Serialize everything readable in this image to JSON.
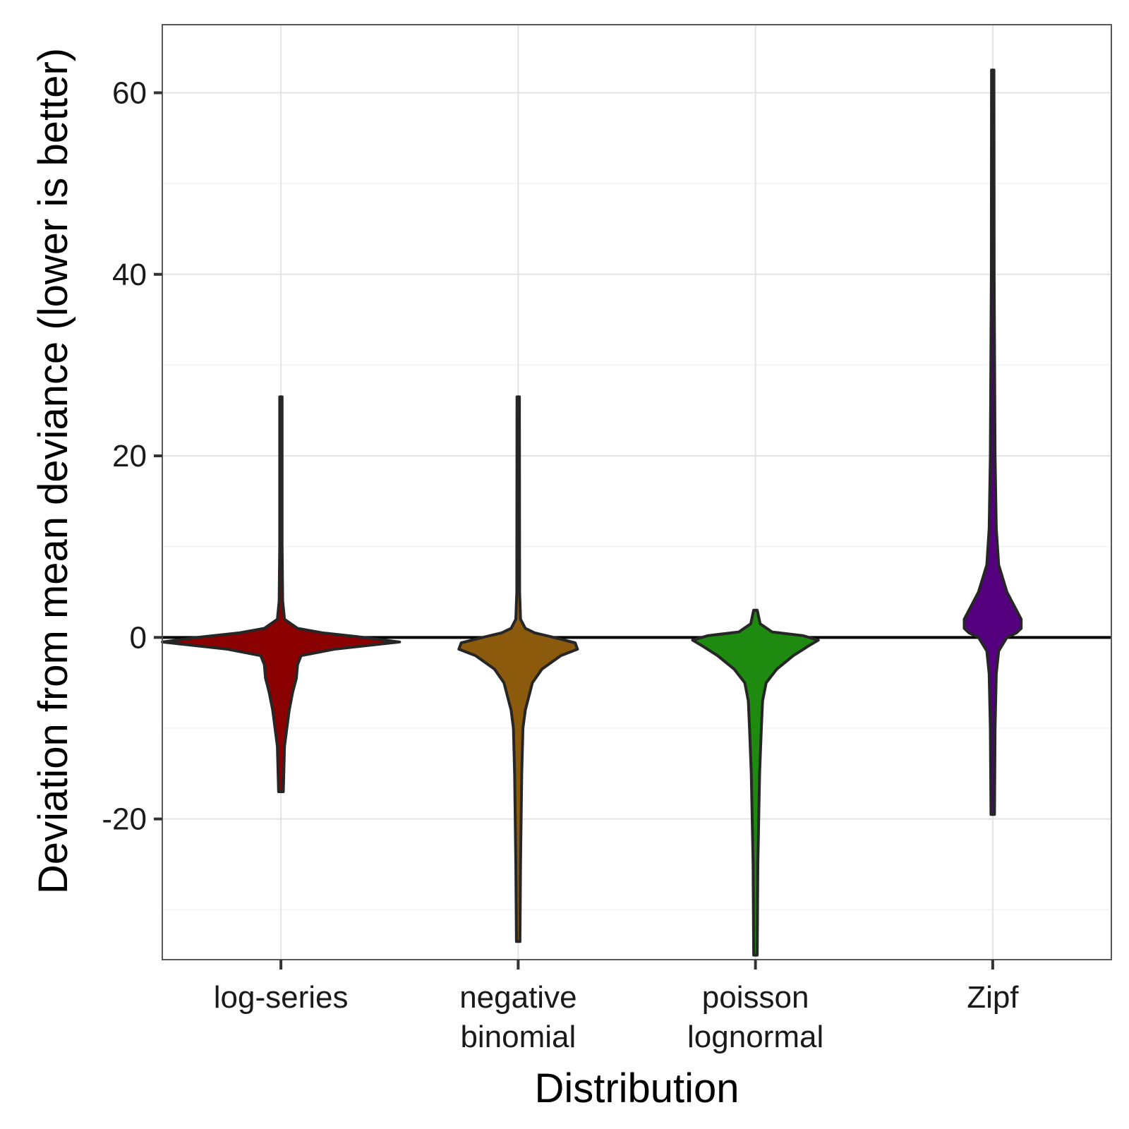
{
  "chart_data": {
    "type": "violin",
    "xlabel": "Distribution",
    "ylabel": "Deviation from mean deviance (lower is better)",
    "ylim": [
      -35.5,
      67.5
    ],
    "y_ticks": [
      -20,
      0,
      20,
      40,
      60
    ],
    "y_tick_labels": [
      "-20",
      "0",
      "20",
      "40",
      "60"
    ],
    "reference_line_y": 0,
    "grid": true,
    "categories": [
      [
        "log-series"
      ],
      [
        "negative",
        "binomial"
      ],
      [
        "poisson",
        "lognormal"
      ],
      [
        "Zipf"
      ]
    ],
    "series": [
      {
        "category": "log-series",
        "color": "#8B0000",
        "min": -17,
        "max": 26.5,
        "density": [
          [
            -17,
            0.02
          ],
          [
            -12,
            0.03
          ],
          [
            -8,
            0.07
          ],
          [
            -6,
            0.1
          ],
          [
            -4.5,
            0.13
          ],
          [
            -3,
            0.14
          ],
          [
            -2,
            0.17
          ],
          [
            -1.3,
            0.45
          ],
          [
            -0.5,
            1.0
          ],
          [
            0,
            0.7
          ],
          [
            0.5,
            0.35
          ],
          [
            1,
            0.14
          ],
          [
            2,
            0.03
          ],
          [
            4,
            0.015
          ],
          [
            10,
            0.01
          ],
          [
            26.5,
            0.01
          ]
        ]
      },
      {
        "category": "negative binomial",
        "color": "#8B5A0D",
        "min": -33.5,
        "max": 26.5,
        "density": [
          [
            -33.5,
            0.015
          ],
          [
            -25,
            0.02
          ],
          [
            -15,
            0.03
          ],
          [
            -10,
            0.04
          ],
          [
            -8,
            0.06
          ],
          [
            -5,
            0.12
          ],
          [
            -3.5,
            0.2
          ],
          [
            -2,
            0.36
          ],
          [
            -1.3,
            0.5
          ],
          [
            -0.6,
            0.48
          ],
          [
            0,
            0.3
          ],
          [
            0.5,
            0.14
          ],
          [
            1,
            0.06
          ],
          [
            2,
            0.02
          ],
          [
            5,
            0.012
          ],
          [
            26.5,
            0.01
          ]
        ]
      },
      {
        "category": "poisson lognormal",
        "color": "#1E8B10",
        "min": -35,
        "max": 3,
        "density": [
          [
            -35,
            0.015
          ],
          [
            -25,
            0.02
          ],
          [
            -15,
            0.035
          ],
          [
            -10,
            0.05
          ],
          [
            -7,
            0.06
          ],
          [
            -5,
            0.09
          ],
          [
            -3.5,
            0.18
          ],
          [
            -2,
            0.32
          ],
          [
            -1,
            0.44
          ],
          [
            -0.3,
            0.53
          ],
          [
            0.2,
            0.4
          ],
          [
            0.6,
            0.14
          ],
          [
            1.5,
            0.04
          ],
          [
            3,
            0.015
          ]
        ]
      },
      {
        "category": "Zipf",
        "color": "#55007F",
        "min": -19.5,
        "max": 62.5,
        "density": [
          [
            -19.5,
            0.015
          ],
          [
            -10,
            0.02
          ],
          [
            -4,
            0.03
          ],
          [
            -1.5,
            0.05
          ],
          [
            0,
            0.12
          ],
          [
            0.5,
            0.2
          ],
          [
            1,
            0.24
          ],
          [
            2,
            0.24
          ],
          [
            3.5,
            0.18
          ],
          [
            5,
            0.12
          ],
          [
            8,
            0.05
          ],
          [
            12,
            0.03
          ],
          [
            20,
            0.02
          ],
          [
            40,
            0.012
          ],
          [
            62.5,
            0.01
          ]
        ]
      }
    ]
  }
}
